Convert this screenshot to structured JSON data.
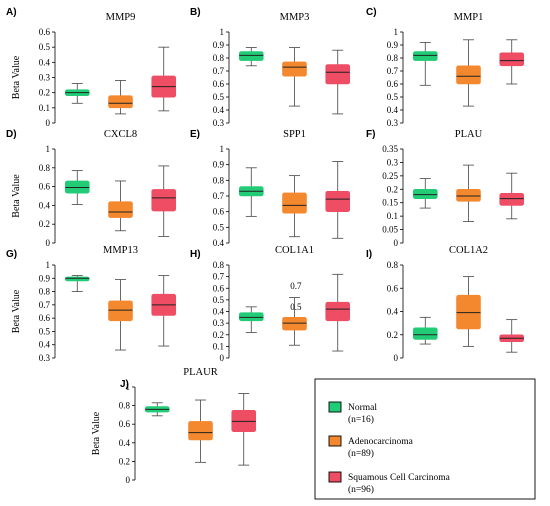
{
  "chart_data": [
    {
      "letter": "A)",
      "title": "MMP9",
      "ylabel": "Beta Value",
      "ylim": [
        0,
        0.6
      ],
      "yticks": [
        "0",
        "0.1",
        "0.2",
        "0.3",
        "0.4",
        "0.5",
        "0.6"
      ],
      "boxes": [
        {
          "min": 0.13,
          "q1": 0.18,
          "median": 0.2,
          "q3": 0.22,
          "max": 0.26
        },
        {
          "min": 0.06,
          "q1": 0.1,
          "median": 0.13,
          "q3": 0.18,
          "max": 0.28
        },
        {
          "min": 0.08,
          "q1": 0.17,
          "median": 0.24,
          "q3": 0.31,
          "max": 0.5
        }
      ]
    },
    {
      "letter": "B)",
      "title": "MMP3",
      "ylabel": "",
      "ylim": [
        0.3,
        1
      ],
      "yticks": [
        "0.3",
        "0.4",
        "0.5",
        "0.6",
        "0.7",
        "0.8",
        "0.9",
        "1"
      ],
      "boxes": [
        {
          "min": 0.74,
          "q1": 0.78,
          "median": 0.82,
          "q3": 0.85,
          "max": 0.88
        },
        {
          "min": 0.43,
          "q1": 0.66,
          "median": 0.73,
          "q3": 0.77,
          "max": 0.88
        },
        {
          "min": 0.37,
          "q1": 0.6,
          "median": 0.69,
          "q3": 0.75,
          "max": 0.86
        }
      ]
    },
    {
      "letter": "C)",
      "title": "MMP1",
      "ylabel": "",
      "ylim": [
        0.3,
        1
      ],
      "yticks": [
        "0.3",
        "0.4",
        "0.5",
        "0.6",
        "0.7",
        "0.8",
        "0.9",
        "1"
      ],
      "boxes": [
        {
          "min": 0.59,
          "q1": 0.78,
          "median": 0.82,
          "q3": 0.85,
          "max": 0.92
        },
        {
          "min": 0.43,
          "q1": 0.6,
          "median": 0.66,
          "q3": 0.74,
          "max": 0.94
        },
        {
          "min": 0.6,
          "q1": 0.74,
          "median": 0.78,
          "q3": 0.84,
          "max": 0.94
        }
      ]
    },
    {
      "letter": "D)",
      "title": "CXCL8",
      "ylabel": "Beta Value",
      "ylim": [
        0,
        1
      ],
      "yticks": [
        "0",
        "0.2",
        "0.4",
        "0.6",
        "0.8",
        "1"
      ],
      "boxes": [
        {
          "min": 0.41,
          "q1": 0.53,
          "median": 0.59,
          "q3": 0.66,
          "max": 0.77
        },
        {
          "min": 0.13,
          "q1": 0.27,
          "median": 0.33,
          "q3": 0.44,
          "max": 0.66
        },
        {
          "min": 0.07,
          "q1": 0.34,
          "median": 0.48,
          "q3": 0.57,
          "max": 0.82
        }
      ]
    },
    {
      "letter": "E)",
      "title": "SPP1",
      "ylabel": "",
      "ylim": [
        0.4,
        1
      ],
      "yticks": [
        "0.4",
        "0.5",
        "0.6",
        "0.7",
        "0.8",
        "0.9",
        "1"
      ],
      "boxes": [
        {
          "min": 0.57,
          "q1": 0.7,
          "median": 0.73,
          "q3": 0.76,
          "max": 0.88
        },
        {
          "min": 0.44,
          "q1": 0.59,
          "median": 0.64,
          "q3": 0.72,
          "max": 0.83
        },
        {
          "min": 0.43,
          "q1": 0.6,
          "median": 0.68,
          "q3": 0.73,
          "max": 0.92
        }
      ]
    },
    {
      "letter": "F)",
      "title": "PLAU",
      "ylabel": "",
      "ylim": [
        0,
        0.35
      ],
      "yticks": [
        "0",
        "0.05",
        "0.1",
        "0.15",
        "0.2",
        "0.25",
        "0.3",
        "0.35"
      ],
      "boxes": [
        {
          "min": 0.13,
          "q1": 0.165,
          "median": 0.18,
          "q3": 0.2,
          "max": 0.24
        },
        {
          "min": 0.08,
          "q1": 0.155,
          "median": 0.175,
          "q3": 0.2,
          "max": 0.29
        },
        {
          "min": 0.09,
          "q1": 0.14,
          "median": 0.165,
          "q3": 0.185,
          "max": 0.26
        }
      ]
    },
    {
      "letter": "G)",
      "title": "MMP13",
      "ylabel": "Beta Value",
      "ylim": [
        0.3,
        1
      ],
      "yticks": [
        "0.3",
        "0.4",
        "0.5",
        "0.6",
        "0.7",
        "0.8",
        "0.9",
        "1"
      ],
      "boxes": [
        {
          "min": 0.8,
          "q1": 0.88,
          "median": 0.9,
          "q3": 0.91,
          "max": 0.92
        },
        {
          "min": 0.36,
          "q1": 0.58,
          "median": 0.66,
          "q3": 0.73,
          "max": 0.89
        },
        {
          "min": 0.39,
          "q1": 0.62,
          "median": 0.7,
          "q3": 0.78,
          "max": 0.92
        }
      ]
    },
    {
      "letter": "H)",
      "title": "COL1A1",
      "ylabel": "",
      "ylim": [
        0,
        0.8
      ],
      "yticks": [
        "0",
        "0.1",
        "0.2",
        "0.3",
        "0.4",
        "0.5",
        "0.6",
        "0.7",
        "0.8"
      ],
      "ytick_overlay": [
        {
          "label": "0.7",
          "value": 0.62
        },
        {
          "label": "0.5",
          "value": 0.44
        }
      ],
      "boxes": [
        {
          "min": 0.22,
          "q1": 0.32,
          "median": 0.35,
          "q3": 0.39,
          "max": 0.44
        },
        {
          "min": 0.11,
          "q1": 0.24,
          "median": 0.3,
          "q3": 0.35,
          "max": 0.52
        },
        {
          "min": 0.06,
          "q1": 0.32,
          "median": 0.42,
          "q3": 0.48,
          "max": 0.72
        }
      ]
    },
    {
      "letter": "I)",
      "title": "COL1A2",
      "ylabel": "",
      "ylim": [
        0,
        0.8
      ],
      "yticks": [
        "0",
        "0.2",
        "0.4",
        "0.6",
        "0.8"
      ],
      "boxes": [
        {
          "min": 0.12,
          "q1": 0.16,
          "median": 0.2,
          "q3": 0.26,
          "max": 0.35
        },
        {
          "min": 0.1,
          "q1": 0.25,
          "median": 0.39,
          "q3": 0.54,
          "max": 0.7
        },
        {
          "min": 0.05,
          "q1": 0.14,
          "median": 0.17,
          "q3": 0.2,
          "max": 0.33
        }
      ]
    },
    {
      "letter": "J)",
      "title": "PLAUR",
      "ylabel": "Beta Value",
      "ylim": [
        0,
        1
      ],
      "yticks": [
        "0",
        "0.2",
        "0.4",
        "0.6",
        "0.8",
        "1"
      ],
      "boxes": [
        {
          "min": 0.69,
          "q1": 0.73,
          "median": 0.76,
          "q3": 0.79,
          "max": 0.83
        },
        {
          "min": 0.19,
          "q1": 0.43,
          "median": 0.51,
          "q3": 0.63,
          "max": 0.86
        },
        {
          "min": 0.16,
          "q1": 0.52,
          "median": 0.63,
          "q3": 0.75,
          "max": 0.93
        }
      ]
    }
  ],
  "legend": {
    "items": [
      {
        "name": "Normal",
        "n": "(n=16)",
        "color": "#22cc77"
      },
      {
        "name": "Adenocarcinoma",
        "n": "(n=89)",
        "color": "#f4882e"
      },
      {
        "name": "Squamous Cell Carcinoma",
        "n": "(n=96)",
        "color": "#ee4d63"
      }
    ]
  }
}
